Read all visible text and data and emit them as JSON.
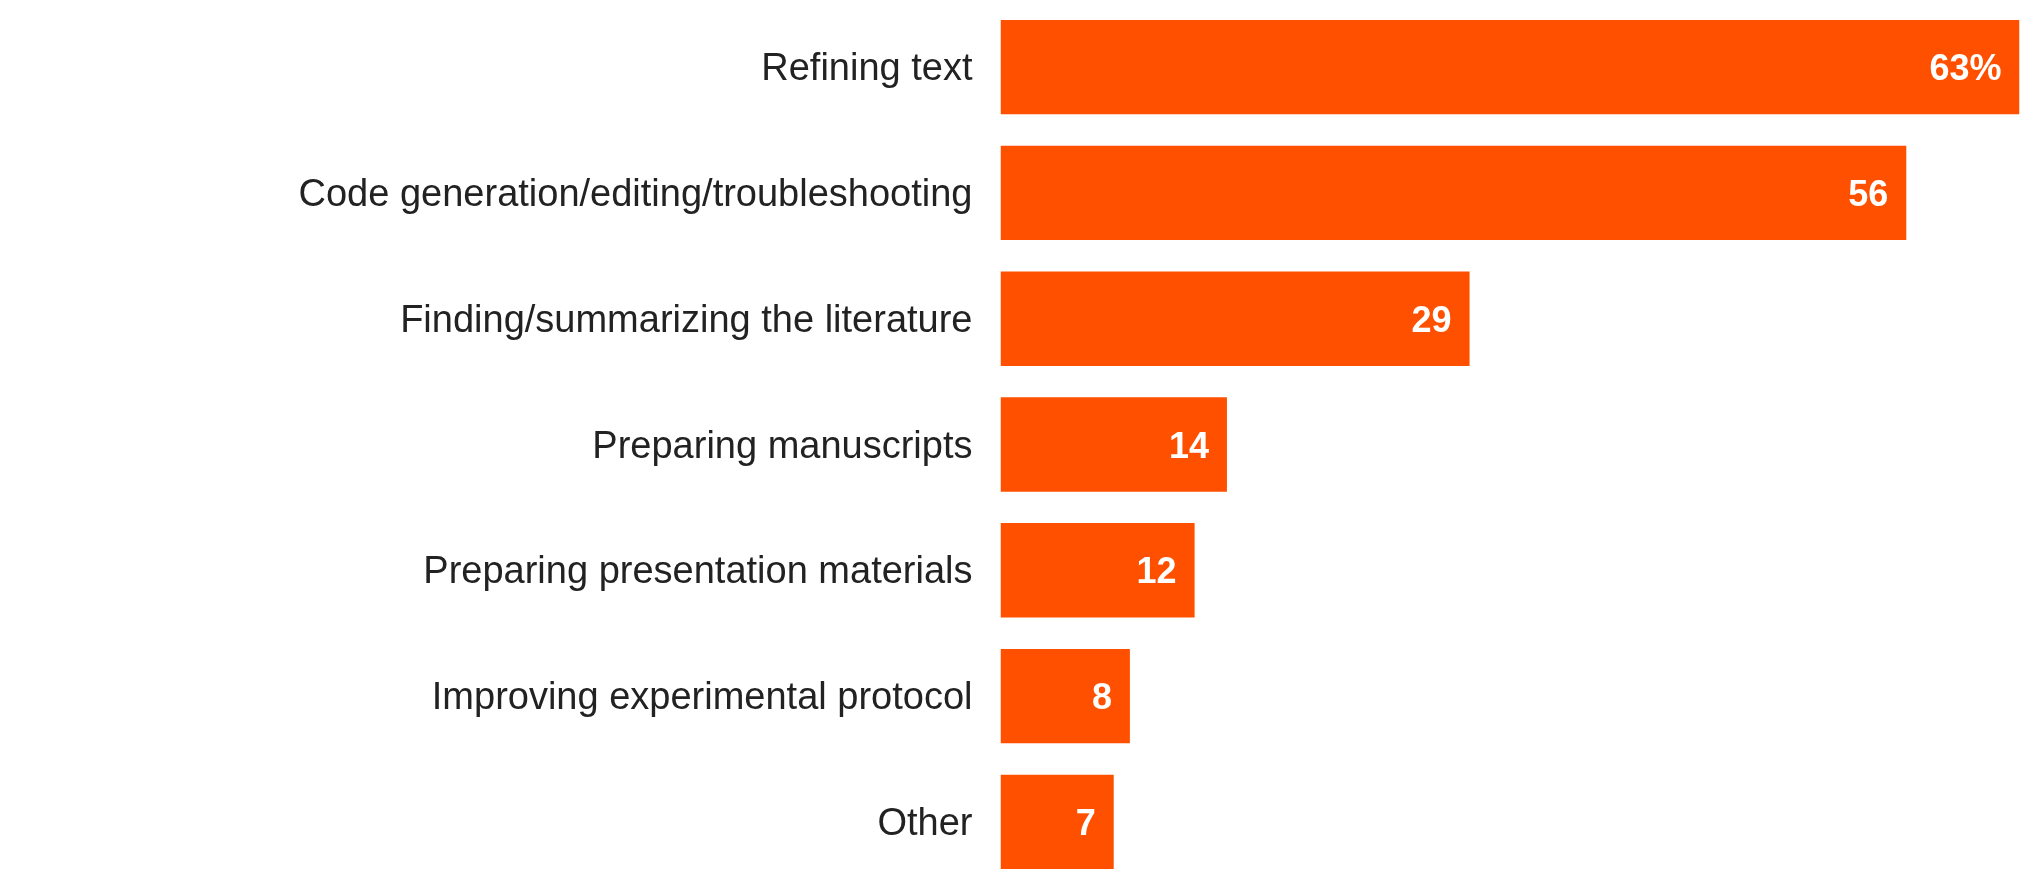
{
  "chart_data": {
    "type": "bar",
    "orientation": "horizontal",
    "categories": [
      "Refining text",
      "Code generation/editing/troubleshooting",
      "Finding/summarizing the literature",
      "Preparing manuscripts",
      "Preparing presentation materials",
      "Improving experimental protocol",
      "Other"
    ],
    "values": [
      63,
      56,
      29,
      14,
      12,
      8,
      7
    ],
    "value_labels": [
      "63%",
      "56",
      "29",
      "14",
      "12",
      "8",
      "7"
    ],
    "color": "#ff5000",
    "grid": false
  }
}
